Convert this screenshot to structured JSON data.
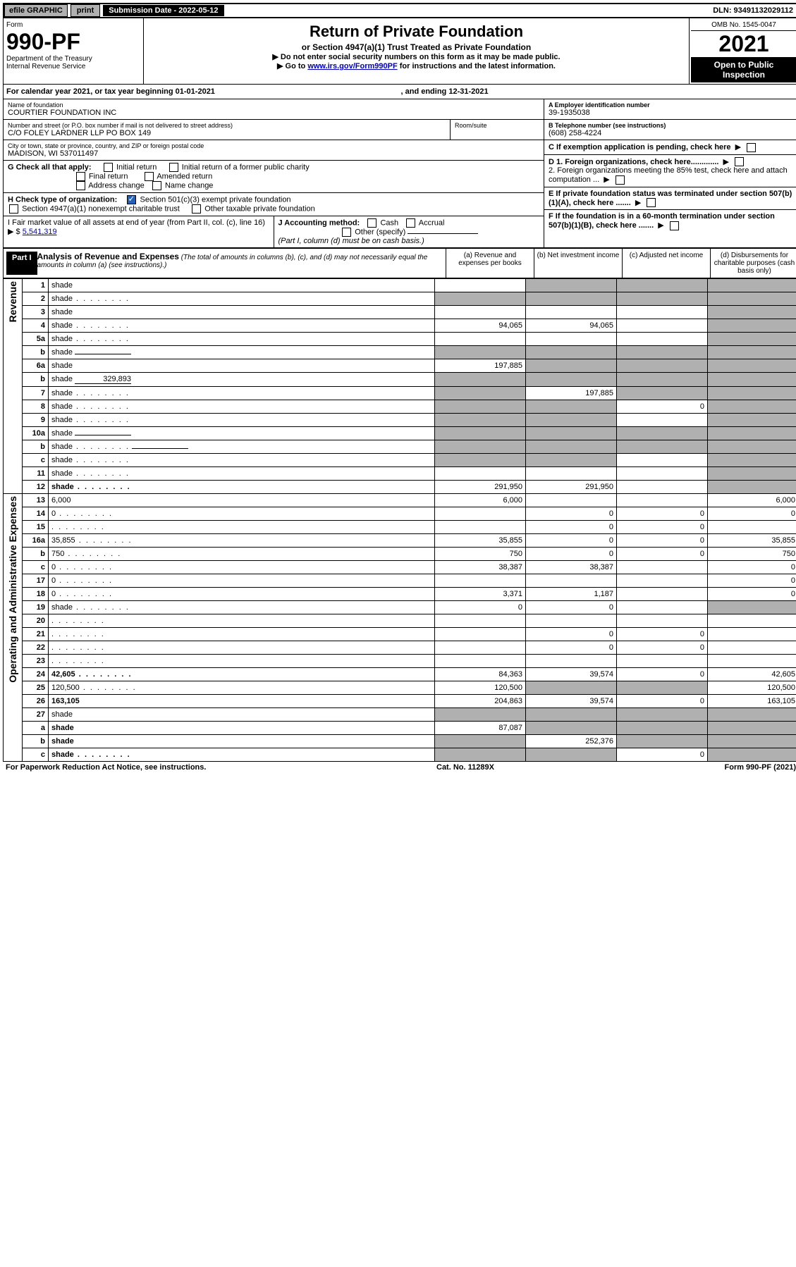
{
  "topbar": {
    "efile": "efile GRAPHIC",
    "print": "print",
    "submission_label": "Submission Date - 2022-05-12",
    "dln": "DLN: 93491132029112"
  },
  "header": {
    "form_word": "Form",
    "form_no": "990-PF",
    "dept": "Department of the Treasury",
    "irs": "Internal Revenue Service",
    "title": "Return of Private Foundation",
    "subtitle": "or Section 4947(a)(1) Trust Treated as Private Foundation",
    "note1": "▶ Do not enter social security numbers on this form as it may be made public.",
    "note2_pre": "▶ Go to ",
    "note2_link": "www.irs.gov/Form990PF",
    "note2_post": " for instructions and the latest information.",
    "omb": "OMB No. 1545-0047",
    "year": "2021",
    "open": "Open to Public Inspection"
  },
  "calyear": {
    "pre": "For calendar year 2021, or tax year beginning ",
    "begin": "01-01-2021",
    "mid": ", and ending ",
    "end": "12-31-2021"
  },
  "entity": {
    "name_lbl": "Name of foundation",
    "name": "COURTIER FOUNDATION INC",
    "addr_lbl": "Number and street (or P.O. box number if mail is not delivered to street address)",
    "addr": "C/O FOLEY LARDNER LLP PO BOX 149",
    "room_lbl": "Room/suite",
    "city_lbl": "City or town, state or province, country, and ZIP or foreign postal code",
    "city": "MADISON, WI  537011497",
    "ein_lbl": "A Employer identification number",
    "ein": "39-1935038",
    "tel_lbl": "B Telephone number (see instructions)",
    "tel": "(608) 258-4224",
    "c_lbl": "C If exemption application is pending, check here",
    "d1": "D 1. Foreign organizations, check here.............",
    "d2": "2. Foreign organizations meeting the 85% test, check here and attach computation ...",
    "e": "E  If private foundation status was terminated under section 507(b)(1)(A), check here .......",
    "f": "F  If the foundation is in a 60-month termination under section 507(b)(1)(B), check here .......",
    "g_lbl": "G Check all that apply:",
    "g_initial": "Initial return",
    "g_initial_former": "Initial return of a former public charity",
    "g_final": "Final return",
    "g_amended": "Amended return",
    "g_addr": "Address change",
    "g_name": "Name change",
    "h_lbl": "H Check type of organization:",
    "h_501": "Section 501(c)(3) exempt private foundation",
    "h_4947": "Section 4947(a)(1) nonexempt charitable trust",
    "h_other": "Other taxable private foundation",
    "i_lbl": "I Fair market value of all assets at end of year (from Part II, col. (c), line 16) ▶ $ ",
    "i_val": "5,541,319",
    "j_lbl": "J Accounting method:",
    "j_cash": "Cash",
    "j_accrual": "Accrual",
    "j_other": "Other (specify)",
    "j_note": "(Part I, column (d) must be on cash basis.)"
  },
  "part1": {
    "label": "Part I",
    "title": "Analysis of Revenue and Expenses",
    "note": "(The total of amounts in columns (b), (c), and (d) may not necessarily equal the amounts in column (a) (see instructions).)",
    "col_a": "(a) Revenue and expenses per books",
    "col_b": "(b) Net investment income",
    "col_c": "(c) Adjusted net income",
    "col_d": "(d) Disbursements for charitable purposes (cash basis only)"
  },
  "vlabels": {
    "rev": "Revenue",
    "oae": "Operating and Administrative Expenses"
  },
  "rows": [
    {
      "n": "1",
      "d": "shade",
      "a": "",
      "b": "shade",
      "c": "shade"
    },
    {
      "n": "2",
      "d": "shade",
      "dots": true,
      "a": "shade",
      "b": "shade",
      "c": "shade"
    },
    {
      "n": "3",
      "d": "shade",
      "a": "",
      "b": "",
      "c": ""
    },
    {
      "n": "4",
      "d": "shade",
      "dots": true,
      "a": "94,065",
      "b": "94,065",
      "c": ""
    },
    {
      "n": "5a",
      "d": "shade",
      "dots": true,
      "a": "",
      "b": "",
      "c": ""
    },
    {
      "n": "b",
      "d": "shade",
      "inline": "",
      "a": "shade",
      "b": "shade",
      "c": "shade"
    },
    {
      "n": "6a",
      "d": "shade",
      "a": "197,885",
      "b": "shade",
      "c": "shade"
    },
    {
      "n": "b",
      "d": "shade",
      "inline": "329,893",
      "a": "shade",
      "b": "shade",
      "c": "shade"
    },
    {
      "n": "7",
      "d": "shade",
      "dots": true,
      "a": "shade",
      "b": "197,885",
      "c": "shade"
    },
    {
      "n": "8",
      "d": "shade",
      "dots": true,
      "a": "shade",
      "b": "shade",
      "c": "0"
    },
    {
      "n": "9",
      "d": "shade",
      "dots": true,
      "a": "shade",
      "b": "shade",
      "c": ""
    },
    {
      "n": "10a",
      "d": "shade",
      "inline": "",
      "a": "shade",
      "b": "shade",
      "c": "shade"
    },
    {
      "n": "b",
      "d": "shade",
      "dots": true,
      "inline": "",
      "a": "shade",
      "b": "shade",
      "c": "shade"
    },
    {
      "n": "c",
      "d": "shade",
      "dots": true,
      "a": "shade",
      "b": "shade",
      "c": ""
    },
    {
      "n": "11",
      "d": "shade",
      "dots": true,
      "a": "",
      "b": "",
      "c": ""
    },
    {
      "n": "12",
      "d": "shade",
      "bold": true,
      "dots": true,
      "a": "291,950",
      "b": "291,950",
      "c": ""
    },
    {
      "n": "13",
      "d": "6,000",
      "a": "6,000",
      "b": "",
      "c": ""
    },
    {
      "n": "14",
      "d": "0",
      "dots": true,
      "a": "",
      "b": "0",
      "c": "0"
    },
    {
      "n": "15",
      "d": "",
      "dots": true,
      "a": "",
      "b": "0",
      "c": "0"
    },
    {
      "n": "16a",
      "d": "35,855",
      "dots": true,
      "a": "35,855",
      "b": "0",
      "c": "0"
    },
    {
      "n": "b",
      "d": "750",
      "dots": true,
      "a": "750",
      "b": "0",
      "c": "0"
    },
    {
      "n": "c",
      "d": "0",
      "dots": true,
      "a": "38,387",
      "b": "38,387",
      "c": ""
    },
    {
      "n": "17",
      "d": "0",
      "dots": true,
      "a": "",
      "b": "",
      "c": ""
    },
    {
      "n": "18",
      "d": "0",
      "dots": true,
      "a": "3,371",
      "b": "1,187",
      "c": ""
    },
    {
      "n": "19",
      "d": "shade",
      "dots": true,
      "a": "0",
      "b": "0",
      "c": ""
    },
    {
      "n": "20",
      "d": "",
      "dots": true,
      "a": "",
      "b": "",
      "c": ""
    },
    {
      "n": "21",
      "d": "",
      "dots": true,
      "a": "",
      "b": "0",
      "c": "0"
    },
    {
      "n": "22",
      "d": "",
      "dots": true,
      "a": "",
      "b": "0",
      "c": "0"
    },
    {
      "n": "23",
      "d": "",
      "dots": true,
      "a": "",
      "b": "",
      "c": ""
    },
    {
      "n": "24",
      "d": "42,605",
      "bold": true,
      "dots": true,
      "a": "84,363",
      "b": "39,574",
      "c": "0"
    },
    {
      "n": "25",
      "d": "120,500",
      "dots": true,
      "a": "120,500",
      "b": "shade",
      "c": "shade"
    },
    {
      "n": "26",
      "d": "163,105",
      "bold": true,
      "a": "204,863",
      "b": "39,574",
      "c": "0"
    },
    {
      "n": "27",
      "d": "shade",
      "a": "shade",
      "b": "shade",
      "c": "shade"
    },
    {
      "n": "a",
      "d": "shade",
      "bold": true,
      "a": "87,087",
      "b": "shade",
      "c": "shade"
    },
    {
      "n": "b",
      "d": "shade",
      "bold": true,
      "a": "shade",
      "b": "252,376",
      "c": "shade"
    },
    {
      "n": "c",
      "d": "shade",
      "bold": true,
      "dots": true,
      "a": "shade",
      "b": "shade",
      "c": "0"
    }
  ],
  "footer": {
    "left": "For Paperwork Reduction Act Notice, see instructions.",
    "mid": "Cat. No. 11289X",
    "right": "Form 990-PF (2021)"
  }
}
